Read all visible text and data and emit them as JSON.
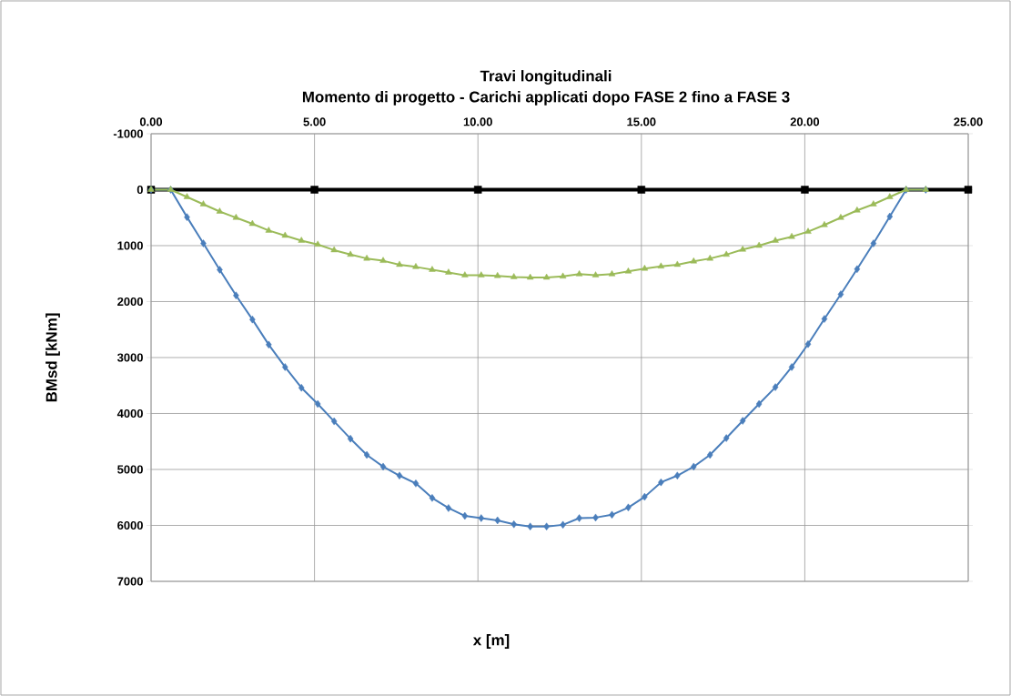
{
  "chart_data": {
    "type": "line",
    "title": "Travi longitudinali",
    "subtitle": "Momento di progetto - Carichi applicati dopo FASE 2 fino a FASE 3",
    "xlabel": "x [m]",
    "ylabel": "BMsd  [kNm]",
    "x": [
      0,
      0.6,
      1.1,
      1.6,
      2.1,
      2.6,
      3.1,
      3.6,
      4.1,
      4.6,
      5.1,
      5.6,
      6.1,
      6.6,
      7.1,
      7.6,
      8.1,
      8.6,
      9.1,
      9.6,
      10.1,
      10.6,
      11.1,
      11.6,
      12.1,
      12.6,
      13.1,
      13.6,
      14.1,
      14.6,
      15.1,
      15.6,
      16.1,
      16.6,
      17.1,
      17.6,
      18.1,
      18.6,
      19.1,
      19.6,
      20.1,
      20.6,
      21.1,
      21.6,
      22.1,
      22.6,
      23.1,
      23.7
    ],
    "series": [
      {
        "color": "#000000",
        "marker": "square",
        "x": [
          0,
          5,
          10,
          15,
          20,
          25
        ],
        "values": [
          0,
          0,
          0,
          0,
          0,
          0
        ]
      },
      {
        "color": "#4a7ebb",
        "marker": "diamond",
        "values": [
          0,
          0,
          490,
          960,
          1430,
          1890,
          2320,
          2770,
          3170,
          3540,
          3830,
          4140,
          4450,
          4740,
          4950,
          5110,
          5250,
          5510,
          5690,
          5830,
          5870,
          5910,
          5980,
          6020,
          6020,
          5990,
          5870,
          5860,
          5810,
          5680,
          5490,
          5230,
          5110,
          4950,
          4740,
          4440,
          4130,
          3830,
          3530,
          3170,
          2760,
          2310,
          1870,
          1420,
          960,
          480,
          0,
          0
        ]
      },
      {
        "color": "#9bbb59",
        "marker": "triangle",
        "values": [
          0,
          0,
          130,
          260,
          390,
          500,
          610,
          730,
          820,
          910,
          980,
          1080,
          1160,
          1230,
          1270,
          1340,
          1380,
          1430,
          1480,
          1530,
          1530,
          1540,
          1560,
          1570,
          1570,
          1550,
          1510,
          1530,
          1510,
          1460,
          1410,
          1370,
          1340,
          1280,
          1230,
          1160,
          1070,
          1000,
          910,
          840,
          750,
          630,
          500,
          370,
          260,
          130,
          0,
          0
        ]
      }
    ],
    "xlim": [
      0,
      25
    ],
    "xticks": [
      {
        "value": 0,
        "label": "0.00"
      },
      {
        "value": 5,
        "label": "5.00"
      },
      {
        "value": 10,
        "label": "10.00"
      },
      {
        "value": 15,
        "label": "15.00"
      },
      {
        "value": 20,
        "label": "20.00"
      },
      {
        "value": 25,
        "label": "25.00"
      }
    ],
    "ylim": [
      7000,
      -1000
    ],
    "yticks": [
      -1000,
      0,
      1000,
      2000,
      3000,
      4000,
      5000,
      6000,
      7000
    ],
    "grid": true
  }
}
